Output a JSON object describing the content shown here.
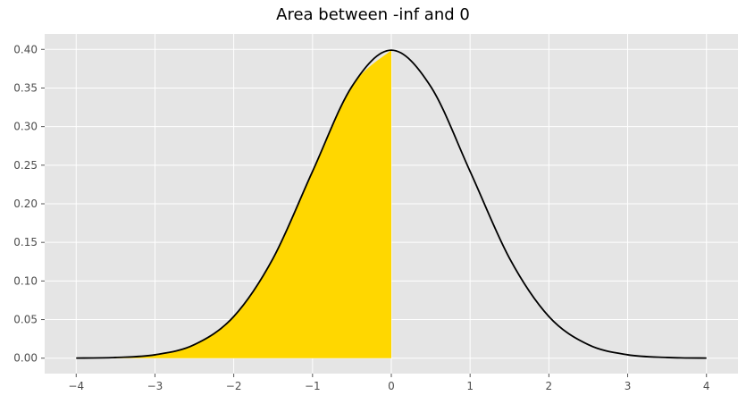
{
  "chart_data": {
    "type": "area",
    "title": "Area between -inf and 0",
    "xlabel": "",
    "ylabel": "",
    "xlim": [
      -4.4,
      4.4
    ],
    "ylim": [
      -0.02,
      0.42
    ],
    "x_ticks": [
      -4,
      -3,
      -2,
      -1,
      0,
      1,
      2,
      3,
      4
    ],
    "x_tick_labels": [
      "−4",
      "−3",
      "−2",
      "−1",
      "0",
      "1",
      "2",
      "3",
      "4"
    ],
    "y_ticks": [
      0.0,
      0.05,
      0.1,
      0.15,
      0.2,
      0.25,
      0.3,
      0.35,
      0.4
    ],
    "y_tick_labels": [
      "0.00",
      "0.05",
      "0.10",
      "0.15",
      "0.20",
      "0.25",
      "0.30",
      "0.35",
      "0.40"
    ],
    "grid": true,
    "series": [
      {
        "kind": "line",
        "color": "#000000",
        "x": [
          -4,
          -3.5,
          -3,
          -2.5,
          -2,
          -1.5,
          -1,
          -0.5,
          0,
          0.5,
          1,
          1.5,
          2,
          2.5,
          3,
          3.5,
          4
        ],
        "values": [
          0.0001,
          0.0009,
          0.0044,
          0.0175,
          0.054,
          0.1295,
          0.242,
          0.352,
          0.399,
          0.352,
          0.242,
          0.1295,
          0.054,
          0.0175,
          0.0044,
          0.0009,
          0.0001
        ]
      },
      {
        "kind": "fill",
        "color": "#FFD700",
        "x": [
          -4,
          -3.5,
          -3,
          -2.5,
          -2,
          -1.5,
          -1,
          -0.5,
          0
        ],
        "values": [
          0.0001,
          0.0009,
          0.0044,
          0.0175,
          0.054,
          0.1295,
          0.242,
          0.352,
          0.399
        ]
      }
    ],
    "colors": {
      "plot_background": "#E5E5E5",
      "grid": "#FFFFFF",
      "fill": "#FFD700",
      "line": "#000000"
    }
  }
}
